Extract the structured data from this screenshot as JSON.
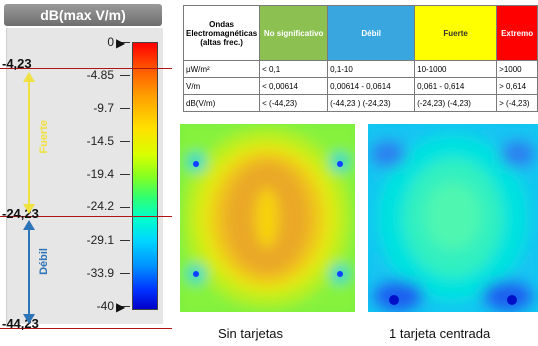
{
  "legend": {
    "title": "dB(max V/m)",
    "tick_labels": [
      "0",
      "-4.85",
      "-9.7",
      "-14.5",
      "-19.4",
      "-24.2",
      "-29.1",
      "-33.9",
      "-40"
    ],
    "marker_top": "-4,23",
    "marker_mid": "-24,23",
    "marker_bottom": "-44,23",
    "band_upper": "Fuerte",
    "band_lower": "Débil",
    "band_upper_color": "#f0e040",
    "band_lower_color": "#2e74b8",
    "marker_line_color": "#b01515"
  },
  "table": {
    "header": {
      "label": "Ondas Electromagnéticas (altas frec.)",
      "cols": [
        {
          "label": "No significativo",
          "color": "#8cc152"
        },
        {
          "label": "Débil",
          "color": "#3aa6e0"
        },
        {
          "label": "Fuerte",
          "color": "#ffff00"
        },
        {
          "label": "Extremo",
          "color": "#ff0000"
        }
      ]
    },
    "rows": [
      {
        "label": "µW/m²",
        "cells": [
          "< 0,1",
          "0,1-10",
          "10-1000",
          ">1000"
        ]
      },
      {
        "label": "V/m",
        "cells": [
          "< 0,00614",
          "0,00614 - 0,0614",
          "0,061 - 0,614",
          "> 0,614"
        ]
      },
      {
        "label": "dB(V/m)",
        "cells": [
          "< (-44,23)",
          "(-44,23 ) (-24,23)",
          "(-24,23) (-4,23)",
          "> (-4,23)"
        ]
      }
    ]
  },
  "maps": [
    {
      "caption": "Sin tarjetas"
    },
    {
      "caption": "1 tarjeta centrada"
    }
  ]
}
